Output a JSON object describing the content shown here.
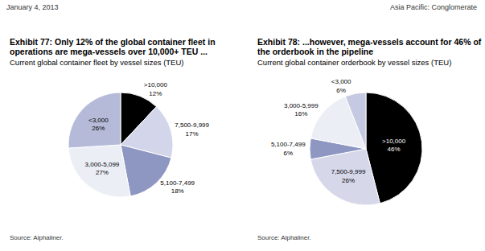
{
  "header": {
    "date": "January 4, 2013",
    "section": "Asia Pacific: Conglomerate"
  },
  "chart_data": [
    {
      "type": "pie",
      "title": "Exhibit 77: Only 12% of the global container fleet in operations are mega-vessels over 10,000+ TEU ...",
      "subtitle": "Current global container fleet by vessel sizes (TEU)",
      "source": "Source: Alphaliner.",
      "categories": [
        ">10,000",
        "7,500-9,999",
        "5,100-7,499",
        "3,000-5,099",
        "<3,000"
      ],
      "values": [
        12,
        17,
        18,
        27,
        26
      ],
      "value_labels": [
        "12%",
        "17%",
        "18%",
        "27%",
        "26%"
      ],
      "colors": [
        "#000000",
        "#d3d6ea",
        "#8e96c2",
        "#eceef6",
        "#b5bad8"
      ],
      "data_labels": true
    },
    {
      "type": "pie",
      "title": "Exhibit 78: ...however, mega-vessels account for 46% of the orderbook in the pipeline",
      "subtitle": "Current global container orderbook by vessel sizes (TEU)",
      "source": "Source: Alphaliner.",
      "categories": [
        ">10,000",
        "7,500-9,999",
        "5,100-7,499",
        "3,000-5,999",
        "<3,000"
      ],
      "values": [
        46,
        26,
        6,
        16,
        6
      ],
      "value_labels": [
        "46%",
        "26%",
        "6%",
        "16%",
        "6%"
      ],
      "colors": [
        "#000000",
        "#d6d8ea",
        "#8e96c2",
        "#eceef6",
        "#c5c9e1"
      ],
      "data_labels": true
    }
  ]
}
